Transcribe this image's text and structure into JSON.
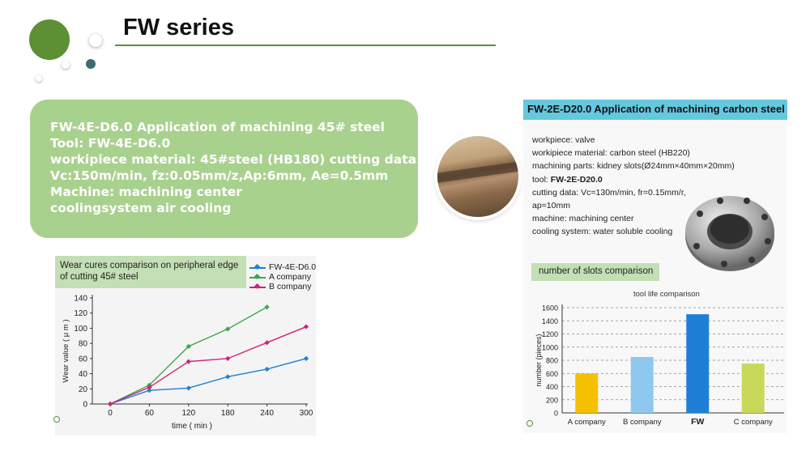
{
  "title": "FW series",
  "info_box": {
    "lines": [
      "FW-4E-D6.0 Application of machining 45# steel",
      "Tool: FW-4E-D6.0",
      "workipiece material: 45#steel (HB180) cutting data.",
      "Vc:150m/min, fz:0.05mm/z,Ap:6mm, Ae=0.5mm",
      "Machine: machining center",
      "coolingsystem air cooling"
    ]
  },
  "right_panel": {
    "header": "FW-2E-D20.0 Application of machining carbon steel",
    "lines": [
      "workpiece: valve",
      "workipiece material: carbon steel (HB220)",
      "machining parts: kidney slots(Ø24mm×40mm×20mm)",
      "tool:",
      "cutting data: Vc=130m/min, fr=0.15mm/r,",
      "ap=10mm",
      "machine: machining center",
      "cooling system: water soluble cooling"
    ],
    "tool_name": "FW-2E-D20.0",
    "section_label": "number of slots comparison"
  },
  "colors": {
    "brand_green": "#5d8f35",
    "light_green": "#a9d18e",
    "header_cyan": "#65c8df",
    "fw_blue": "#1f7fd6",
    "a_green": "#3fa64a",
    "b_magenta": "#d0237a"
  },
  "chart_data": [
    {
      "type": "line",
      "title": "Wear cures comparison on peripheral edge of cutting 45# steel",
      "xlabel": "time ( min )",
      "ylabel": "Wear value ( μ m )",
      "x": [
        0,
        60,
        120,
        180,
        240,
        300
      ],
      "xticks": [
        "0",
        "60",
        "120",
        "180",
        "240",
        "300"
      ],
      "yticks": [
        "0",
        "20",
        "40",
        "60",
        "80",
        "100",
        "120",
        "140"
      ],
      "ylim": [
        0,
        140
      ],
      "series": [
        {
          "name": "FW-4E-D6.0",
          "color": "#1f7fd6",
          "values": [
            0,
            18,
            21,
            36,
            46,
            60
          ]
        },
        {
          "name": "A company",
          "color": "#3fa64a",
          "values": [
            0,
            25,
            76,
            99,
            128,
            null
          ]
        },
        {
          "name": "B company",
          "color": "#d0237a",
          "values": [
            0,
            22,
            56,
            60,
            81,
            102
          ]
        }
      ],
      "legend": "top-right"
    },
    {
      "type": "bar",
      "title": "tool life comparison",
      "ylabel": "number (pieces)",
      "categories": [
        "A company",
        "B company",
        "FW",
        "C company"
      ],
      "values": [
        600,
        850,
        1500,
        750
      ],
      "colors": [
        "#f5c000",
        "#8ec8ef",
        "#1f7fd6",
        "#c8d95a"
      ],
      "yticks": [
        "0",
        "200",
        "400",
        "600",
        "800",
        "1000",
        "1200",
        "1400",
        "1600"
      ],
      "ylim": [
        0,
        1600
      ],
      "grid": true
    }
  ]
}
